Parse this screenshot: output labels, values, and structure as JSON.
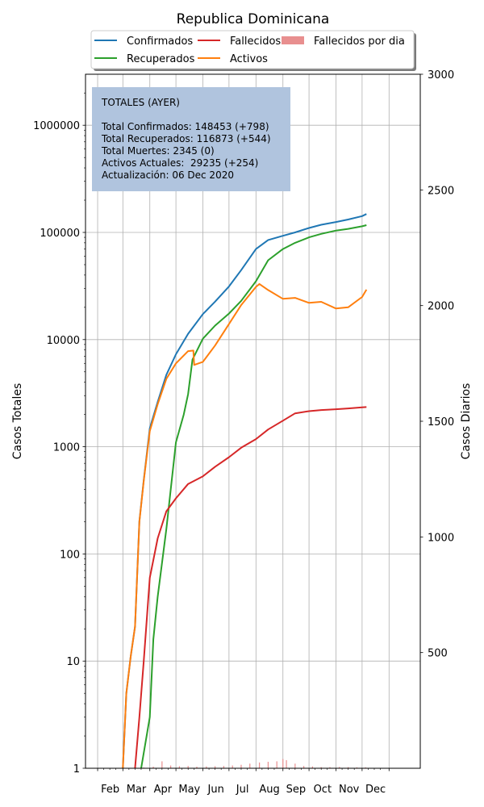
{
  "chart_data": {
    "type": "line",
    "title": "Republica Dominicana",
    "ylabel_left": "Casos Totales",
    "ylabel_right": "Casos Diarios",
    "y_left_scale": "log",
    "y_left_ticks": [
      "1",
      "10",
      "100",
      "1000",
      "10000",
      "100000",
      "1000000"
    ],
    "y_right_ticks": [
      "500",
      "1000",
      "1500",
      "2000",
      "2500",
      "3000"
    ],
    "y_right_range": [
      0,
      3000
    ],
    "x_ticks": [
      "Feb",
      "Mar",
      "Apr",
      "May",
      "Jun",
      "Jul",
      "Aug",
      "Sep",
      "Oct",
      "Nov",
      "Dec"
    ],
    "grid": true,
    "legend_placement": "top-center",
    "legend": [
      {
        "label": "Confirmados",
        "color": "#1f77b4",
        "kind": "line"
      },
      {
        "label": "Recuperados",
        "color": "#2ca02c",
        "kind": "line"
      },
      {
        "label": "Fallecidos",
        "color": "#d62728",
        "kind": "line"
      },
      {
        "label": "Activos",
        "color": "#ff7f0e",
        "kind": "line"
      },
      {
        "label": "Fallecidos por dia",
        "color": "#e88f8f",
        "kind": "bar"
      }
    ],
    "series": [
      {
        "name": "Confirmados",
        "color": "#1f77b4",
        "x": [
          "2020-03-01",
          "2020-03-05",
          "2020-03-10",
          "2020-03-15",
          "2020-03-20",
          "2020-03-25",
          "2020-04-01",
          "2020-04-10",
          "2020-04-20",
          "2020-05-01",
          "2020-05-15",
          "2020-06-01",
          "2020-06-15",
          "2020-07-01",
          "2020-07-15",
          "2020-08-01",
          "2020-08-15",
          "2020-09-01",
          "2020-09-15",
          "2020-10-01",
          "2020-10-15",
          "2020-11-01",
          "2020-11-15",
          "2020-12-01",
          "2020-12-06"
        ],
        "y": [
          1,
          5,
          11,
          21,
          202,
          488,
          1488,
          2620,
          4680,
          7288,
          11320,
          17285,
          22572,
          31373,
          44532,
          70000,
          85000,
          93000,
          100000,
          110000,
          118000,
          125000,
          132000,
          142000,
          148453
        ]
      },
      {
        "name": "Recuperados",
        "color": "#2ca02c",
        "x": [
          "2020-03-22",
          "2020-04-01",
          "2020-04-05",
          "2020-04-10",
          "2020-04-20",
          "2020-05-01",
          "2020-05-10",
          "2020-05-15",
          "2020-05-20",
          "2020-06-01",
          "2020-06-15",
          "2020-07-01",
          "2020-07-15",
          "2020-08-01",
          "2020-08-15",
          "2020-09-01",
          "2020-09-15",
          "2020-10-01",
          "2020-10-15",
          "2020-11-01",
          "2020-11-15",
          "2020-12-01",
          "2020-12-06"
        ],
        "y": [
          1,
          3,
          16,
          40,
          170,
          1100,
          2000,
          3100,
          6500,
          10200,
          13500,
          17500,
          23000,
          35000,
          55000,
          70000,
          80000,
          90000,
          97000,
          104000,
          108000,
          114000,
          116873
        ]
      },
      {
        "name": "Fallecidos",
        "color": "#d62728",
        "x": [
          "2020-03-15",
          "2020-03-20",
          "2020-03-25",
          "2020-04-01",
          "2020-04-10",
          "2020-04-20",
          "2020-05-01",
          "2020-05-15",
          "2020-06-01",
          "2020-06-15",
          "2020-07-01",
          "2020-07-15",
          "2020-08-01",
          "2020-08-15",
          "2020-09-01",
          "2020-09-15",
          "2020-10-01",
          "2020-10-15",
          "2020-11-01",
          "2020-11-15",
          "2020-12-01",
          "2020-12-06"
        ],
        "y": [
          1,
          3,
          10,
          60,
          140,
          250,
          330,
          450,
          530,
          650,
          800,
          980,
          1180,
          1450,
          1750,
          2050,
          2150,
          2200,
          2240,
          2280,
          2330,
          2345
        ]
      },
      {
        "name": "Activos",
        "color": "#ff7f0e",
        "x": [
          "2020-03-01",
          "2020-03-05",
          "2020-03-10",
          "2020-03-15",
          "2020-03-20",
          "2020-03-25",
          "2020-04-01",
          "2020-04-10",
          "2020-04-20",
          "2020-05-01",
          "2020-05-15",
          "2020-05-21",
          "2020-05-22",
          "2020-06-01",
          "2020-06-15",
          "2020-07-01",
          "2020-07-15",
          "2020-08-01",
          "2020-08-05",
          "2020-08-15",
          "2020-09-01",
          "2020-09-15",
          "2020-10-01",
          "2020-10-15",
          "2020-11-01",
          "2020-11-15",
          "2020-12-01",
          "2020-12-06"
        ],
        "y": [
          1,
          5,
          11,
          21,
          200,
          480,
          1400,
          2500,
          4300,
          6000,
          7800,
          7900,
          5800,
          6200,
          8800,
          14000,
          21000,
          31000,
          33000,
          29000,
          24000,
          24500,
          22000,
          22500,
          19500,
          20000,
          25000,
          29235
        ]
      }
    ],
    "daily_bars": {
      "name": "Fallecidos por dia",
      "color": "#e88f8f",
      "x": [
        "2020-03-25",
        "2020-04-05",
        "2020-04-15",
        "2020-04-25",
        "2020-05-05",
        "2020-05-15",
        "2020-05-25",
        "2020-06-05",
        "2020-06-15",
        "2020-06-25",
        "2020-07-05",
        "2020-07-15",
        "2020-07-25",
        "2020-08-05",
        "2020-08-15",
        "2020-08-25",
        "2020-09-01",
        "2020-09-05",
        "2020-09-15",
        "2020-09-25",
        "2020-10-05",
        "2020-10-15",
        "2020-10-25",
        "2020-11-05",
        "2020-11-15",
        "2020-11-25",
        "2020-12-05"
      ],
      "y": [
        3,
        7,
        30,
        12,
        9,
        10,
        7,
        8,
        9,
        10,
        12,
        15,
        20,
        25,
        28,
        30,
        40,
        35,
        20,
        10,
        8,
        5,
        5,
        6,
        5,
        4,
        4
      ]
    },
    "info_box": {
      "lines": [
        "TOTALES (AYER)",
        "",
        "Total Confirmados: 148453 (+798)",
        "Total Recuperados: 116873 (+544)",
        "Total Muertes: 2345 (0)",
        "Activos Actuales:  29235 (+254)",
        "Actualización: 06 Dec 2020"
      ],
      "background": "#b0c4de"
    }
  }
}
